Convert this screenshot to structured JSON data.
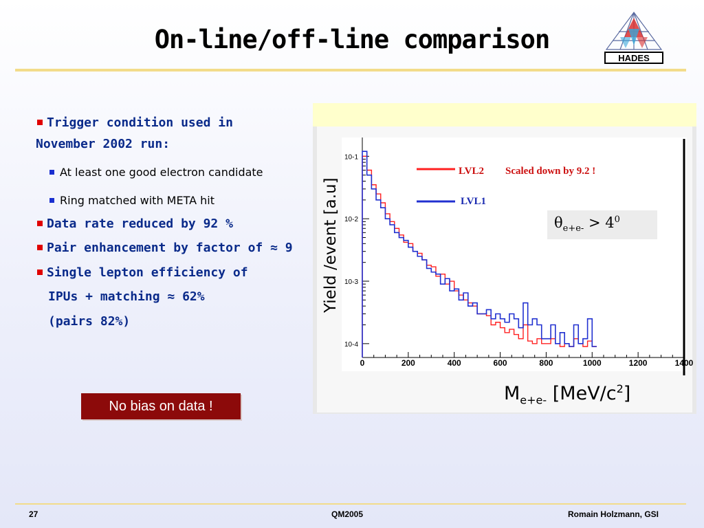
{
  "slide": {
    "title": "On-line/off-line comparison",
    "logo_text": "HADES"
  },
  "bullets": [
    {
      "level": 1,
      "lines": [
        "Trigger condition used in",
        "November 2002 run:"
      ]
    },
    {
      "level": 2,
      "text": "At least one good electron candidate"
    },
    {
      "level": 2,
      "text": "Ring matched with META hit"
    },
    {
      "level": 1,
      "text": "Data rate reduced by 92 %"
    },
    {
      "level": 1,
      "text": "Pair enhancement by factor of ≈ 9"
    },
    {
      "level": 1,
      "lines": [
        "Single lepton efficiency of",
        "IPUs + matching  ≈ 62%",
        "(pairs 82%)"
      ]
    }
  ],
  "callout": "No bias on data !",
  "plot": {
    "ylabel": "Yield /event [a.u]",
    "xlabel_main": "M",
    "xlabel_sub": "e+e-",
    "xlabel_rest": " [MeV/c",
    "xlabel_sup": "2",
    "xlabel_end": "]",
    "theta_symbol": "θ",
    "theta_sub": "e+e-",
    "theta_rest": " > 4",
    "theta_sup": "0",
    "legend_lvl2": "LVL2",
    "legend_lvl1": "LVL1",
    "scaled_note": "Scaled down by 9.2 !"
  },
  "colors": {
    "lvl2": "#ff2020",
    "lvl1": "#2030d0",
    "title": "#000000",
    "bullet_text": "#0a2a8a"
  },
  "chart_data": {
    "type": "line",
    "xlabel": "M e+e- [MeV/c2]",
    "ylabel": "Yield /event [a.u]",
    "log_y": true,
    "xlim": [
      0,
      1400
    ],
    "ylim": [
      6e-05,
      0.2
    ],
    "x_ticks": [
      "0",
      "200",
      "400",
      "600",
      "800",
      "1000",
      "1200",
      "1400"
    ],
    "y_ticks": [
      "10-1",
      "10-2",
      "10-3",
      "10-4"
    ],
    "series": [
      {
        "name": "LVL2",
        "x": [
          0,
          20,
          40,
          60,
          80,
          100,
          120,
          140,
          160,
          180,
          200,
          220,
          240,
          260,
          280,
          300,
          320,
          340,
          360,
          380,
          400,
          420,
          440,
          460,
          480,
          500,
          520,
          540,
          560,
          580,
          600,
          620,
          640,
          660,
          680,
          700,
          720,
          740,
          760,
          780,
          800,
          820,
          840,
          860,
          880,
          900,
          920,
          940,
          960,
          980,
          1000
        ],
        "y": [
          0.1,
          0.06,
          0.035,
          0.025,
          0.018,
          0.012,
          0.009,
          0.007,
          0.0055,
          0.0042,
          0.004,
          0.003,
          0.0028,
          0.0022,
          0.0018,
          0.0017,
          0.0012,
          0.0013,
          0.0009,
          0.001,
          0.0007,
          0.0006,
          0.0005,
          0.00045,
          0.0004,
          0.0003,
          0.0003,
          0.00028,
          0.0002,
          0.00022,
          0.00018,
          0.00015,
          0.00017,
          0.00014,
          0.00012,
          0.0002,
          0.00011,
          0.0001,
          0.00012,
          0.0001,
          0.0001,
          0.00012,
          0.0001,
          9e-05,
          0.0001,
          9e-05,
          0.00012,
          0.0001,
          9e-05,
          0.00011,
          9e-05
        ]
      },
      {
        "name": "LVL1",
        "x": [
          0,
          20,
          40,
          60,
          80,
          100,
          120,
          140,
          160,
          180,
          200,
          220,
          240,
          260,
          280,
          300,
          320,
          340,
          360,
          380,
          400,
          420,
          440,
          460,
          480,
          500,
          520,
          540,
          560,
          580,
          600,
          620,
          640,
          660,
          680,
          700,
          720,
          740,
          760,
          780,
          800,
          820,
          840,
          860,
          880,
          900,
          920,
          940,
          960,
          980,
          1000
        ],
        "y": [
          0.12,
          0.05,
          0.03,
          0.02,
          0.015,
          0.01,
          0.008,
          0.006,
          0.005,
          0.0045,
          0.0035,
          0.003,
          0.0025,
          0.0022,
          0.0016,
          0.0014,
          0.0013,
          0.0009,
          0.0011,
          0.0007,
          0.00075,
          0.0005,
          0.00065,
          0.0004,
          0.00045,
          0.0003,
          0.0003,
          0.00035,
          0.00025,
          0.0003,
          0.00025,
          0.00022,
          0.0003,
          0.00025,
          0.00018,
          0.00045,
          0.0002,
          0.00025,
          0.0002,
          0.00012,
          0.00012,
          0.0002,
          0.0001,
          0.00015,
          0.0001,
          9e-05,
          0.0002,
          0.0001,
          0.00012,
          0.00025,
          9e-05
        ]
      }
    ]
  },
  "footer": {
    "page": "27",
    "conference": "QM2005",
    "author": "Romain Holzmann, GSI"
  }
}
